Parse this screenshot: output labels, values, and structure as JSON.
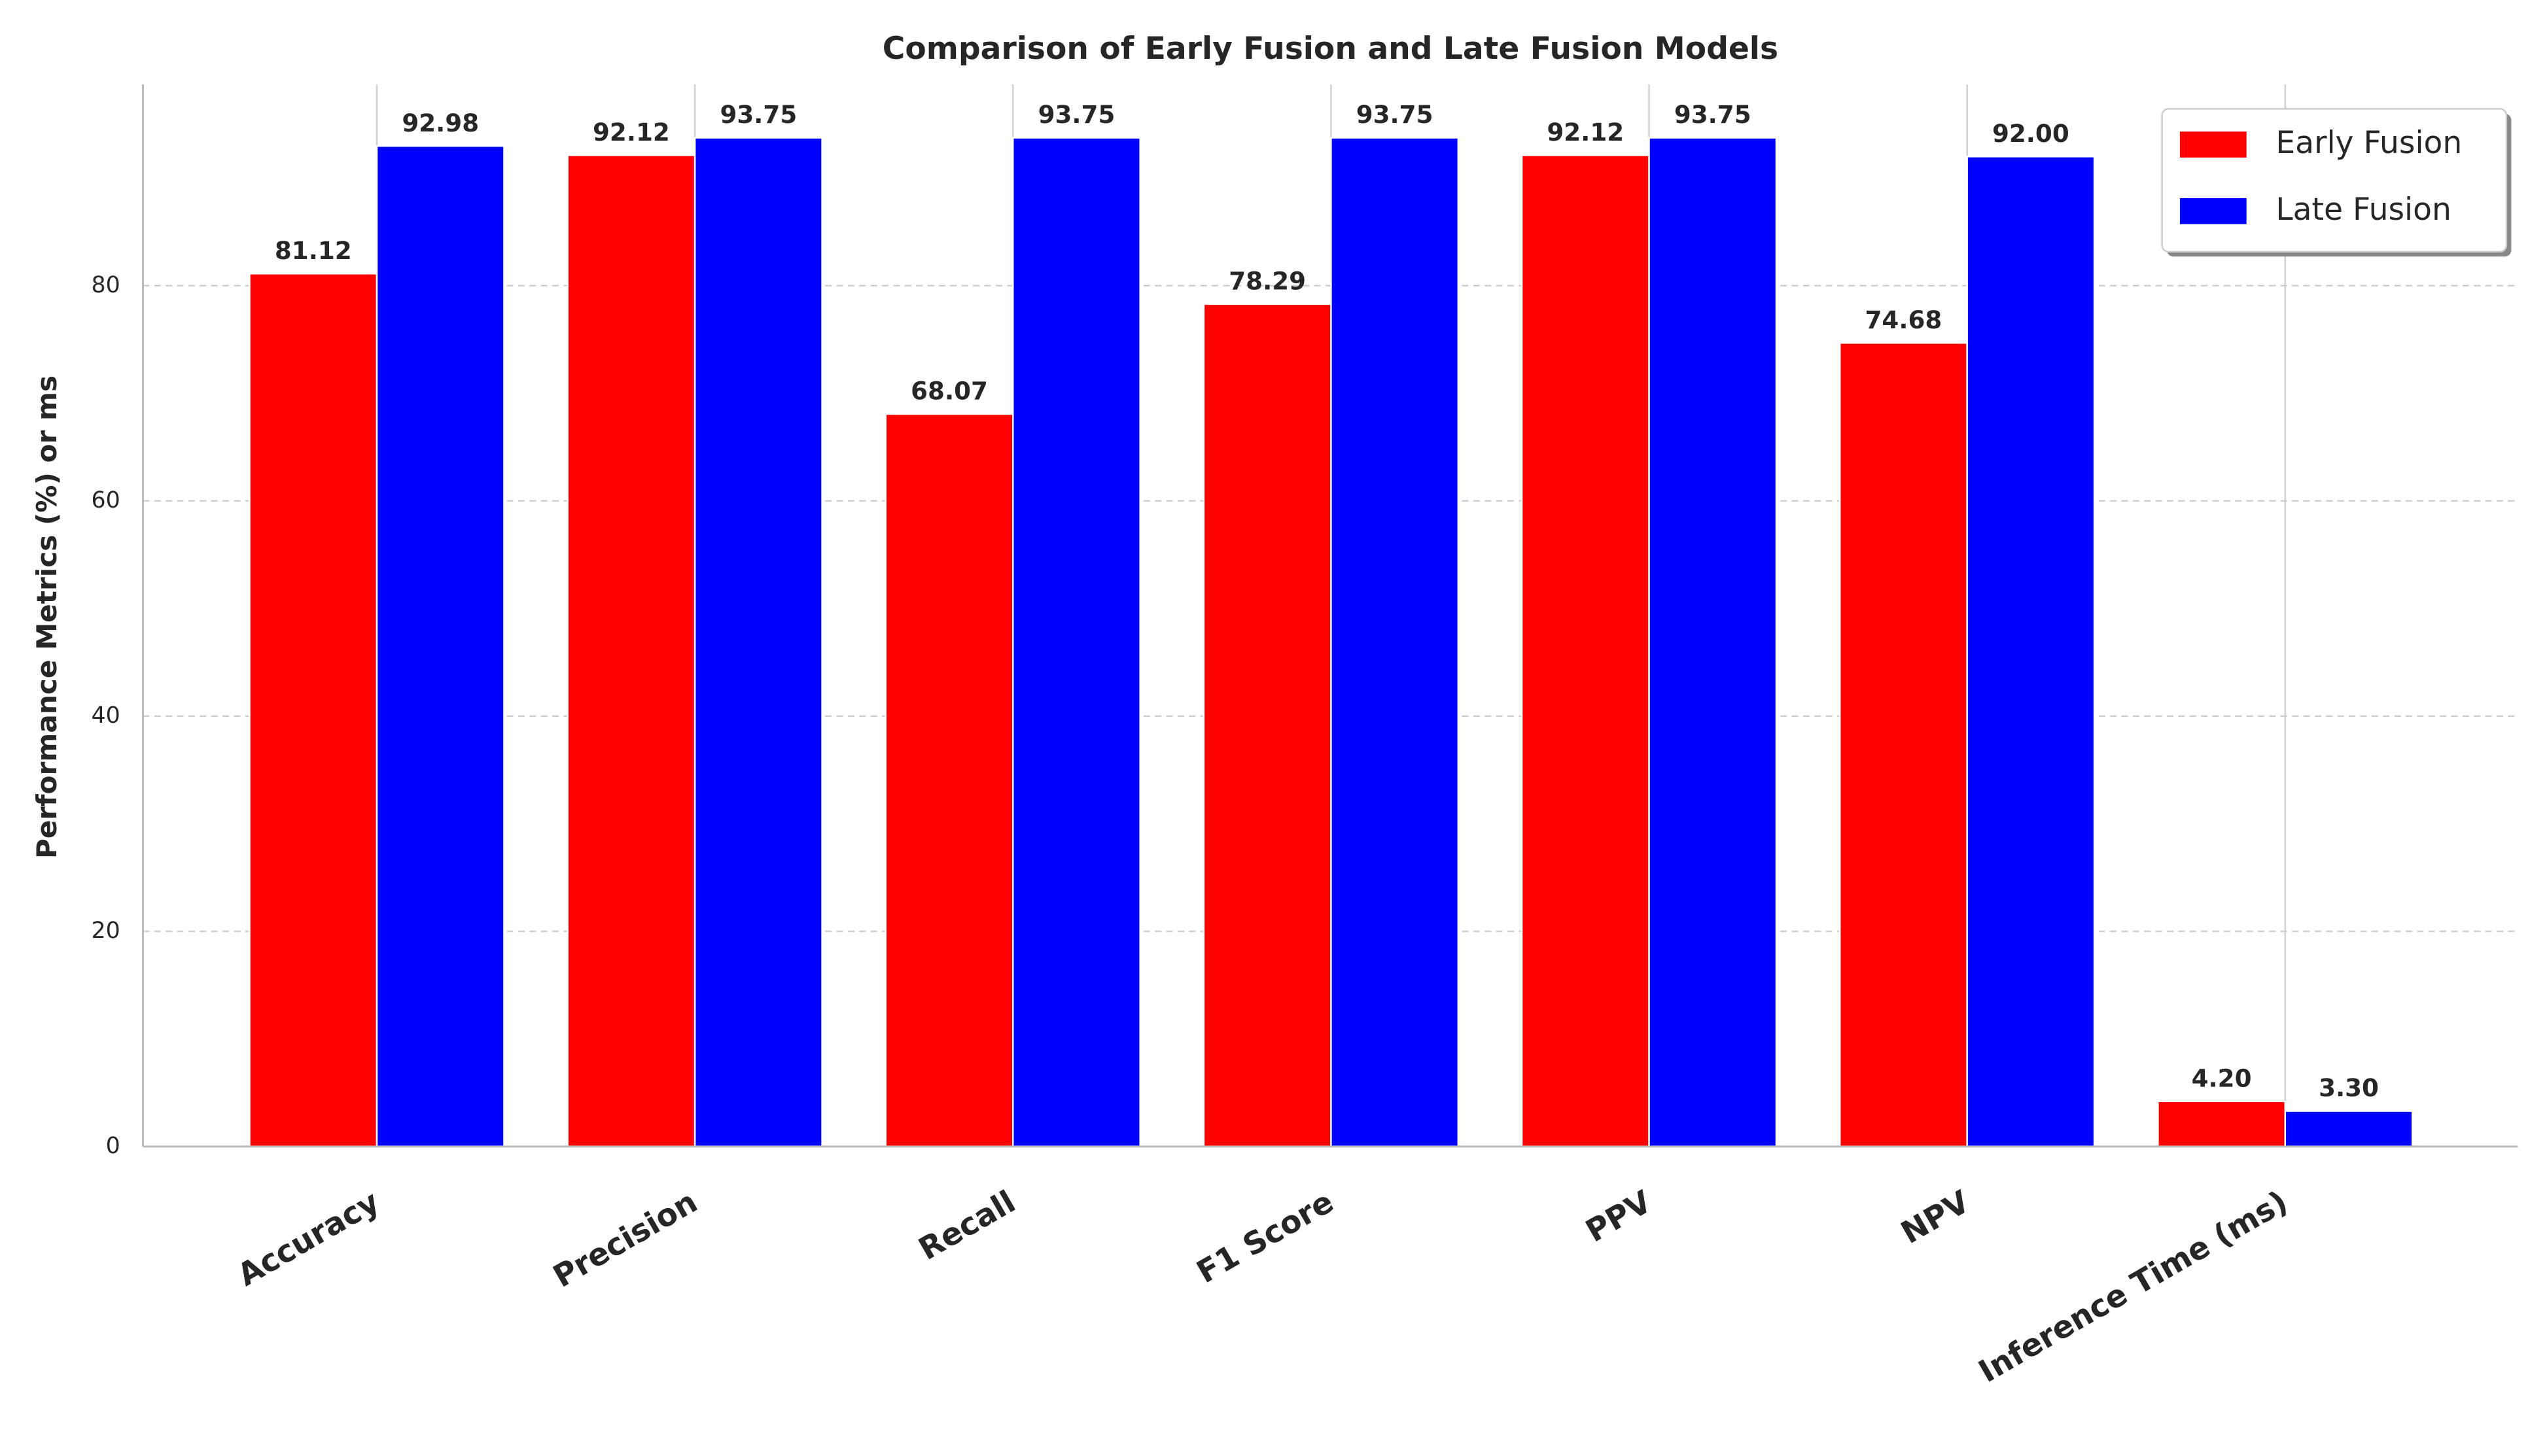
{
  "chart_data": {
    "type": "bar",
    "title": "Comparison of Early Fusion and Late Fusion Models",
    "y_label": "Performance Metrics (%) or ms",
    "categories": [
      "Accuracy",
      "Precision",
      "Recall",
      "F1 Score",
      "PPV",
      "NPV",
      "Inference Time (ms)"
    ],
    "series": [
      {
        "name": "Early Fusion",
        "color": "#ff0000",
        "values": [
          81.12,
          92.12,
          68.07,
          78.29,
          92.12,
          74.68,
          4.2
        ],
        "value_labels": [
          "81.12",
          "92.12",
          "68.07",
          "78.29",
          "92.12",
          "74.68",
          "4.20"
        ]
      },
      {
        "name": "Late Fusion",
        "color": "#0000ff",
        "values": [
          92.98,
          93.75,
          93.75,
          93.75,
          93.75,
          92,
          3.3
        ],
        "value_labels": [
          "92.98",
          "93.75",
          "93.75",
          "93.75",
          "93.75",
          "92.00",
          "3.30"
        ]
      }
    ],
    "ylim": [
      0,
      98.7
    ],
    "yticks": [
      0,
      20,
      40,
      60,
      80
    ],
    "grid": true,
    "legend": "upper right"
  }
}
